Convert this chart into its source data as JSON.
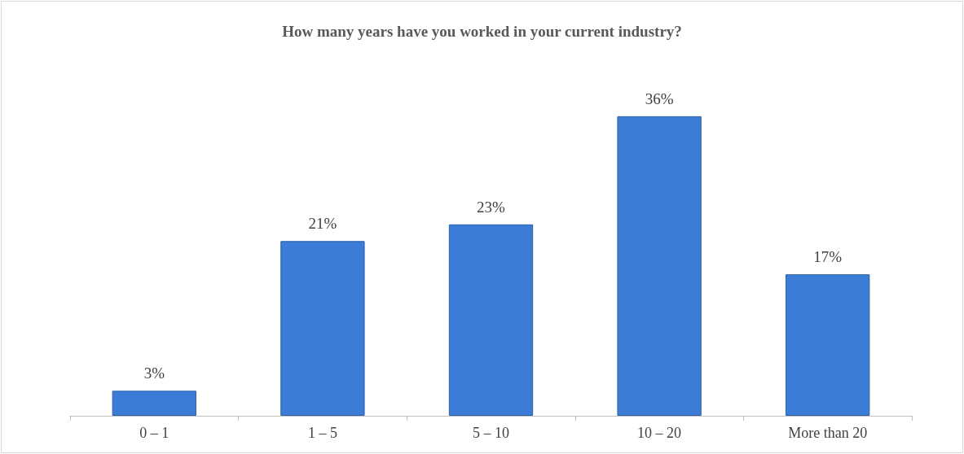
{
  "chart_data": {
    "type": "bar",
    "title": "How many years have you worked in your current industry?",
    "categories": [
      "0 – 1",
      "1 – 5",
      "5 – 10",
      "10 – 20",
      "More than 20"
    ],
    "values": [
      3,
      21,
      23,
      36,
      17
    ],
    "value_labels": [
      "3%",
      "21%",
      "23%",
      "36%",
      "17%"
    ],
    "color": "#3b7dd6"
  }
}
